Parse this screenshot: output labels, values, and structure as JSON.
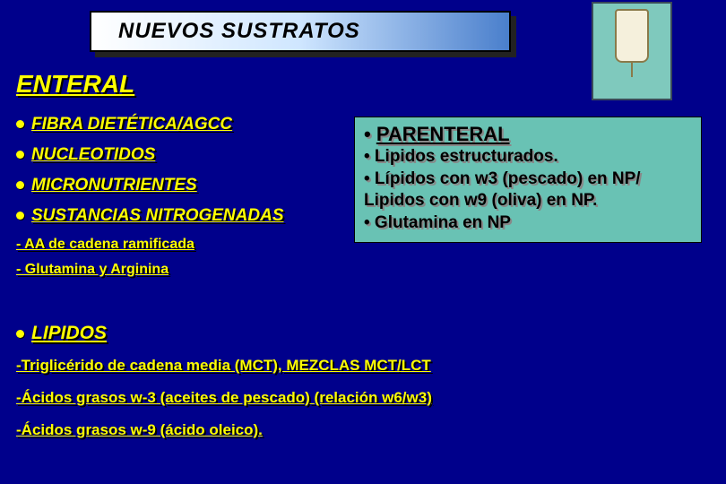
{
  "colors": {
    "background": "#00008b",
    "accent_text": "#ffff00",
    "text_shadow": "#000000",
    "title_gradient_start": "#ffffff",
    "title_gradient_mid": "#cfe6ff",
    "title_gradient_end": "#4a7fcc",
    "box_bg": "#69c2b4"
  },
  "typography": {
    "title_fontsize": 24,
    "heading_fontsize": 28,
    "item_fontsize": 19,
    "subitem_fontsize": 16,
    "box_heading_fontsize": 22,
    "box_line_fontsize": 19,
    "bottom_line_fontsize": 17,
    "font_family": "Comic Sans MS"
  },
  "title": "NUEVOS SUSTRATOS",
  "enteral": {
    "heading": "ENTERAL",
    "items": [
      {
        "label": "FIBRA DIETÉTICA/AGCC",
        "underline": true
      },
      {
        "label": "NUCLEOTIDOS",
        "underline": true
      },
      {
        "label": "MICRONUTRIENTES",
        "underline": true
      },
      {
        "label": "SUSTANCIAS NITROGENADAS",
        "underline": true
      }
    ],
    "subitems": [
      "- AA de cadena ramificada",
      "- Glutamina y Arginina"
    ]
  },
  "parenteral": {
    "heading_bullet": "•",
    "heading": "PARENTERAL",
    "lines": [
      "• Lipidos estructurados.",
      "• Lípidos con w3 (pescado) en NP/ Lipidos con w9 (oliva) en NP.",
      "• Glutamina en NP"
    ]
  },
  "lipidos": {
    "heading": "LIPIDOS",
    "lines": [
      "-Triglicérido de cadena media (MCT), MEZCLAS MCT/LCT",
      "-Ácidos grasos w-3 (aceites de pescado) (relación w6/w3)",
      "-Ácidos grasos w-9 (ácido oleico)."
    ]
  },
  "icon": {
    "name": "iv-bag-icon"
  }
}
